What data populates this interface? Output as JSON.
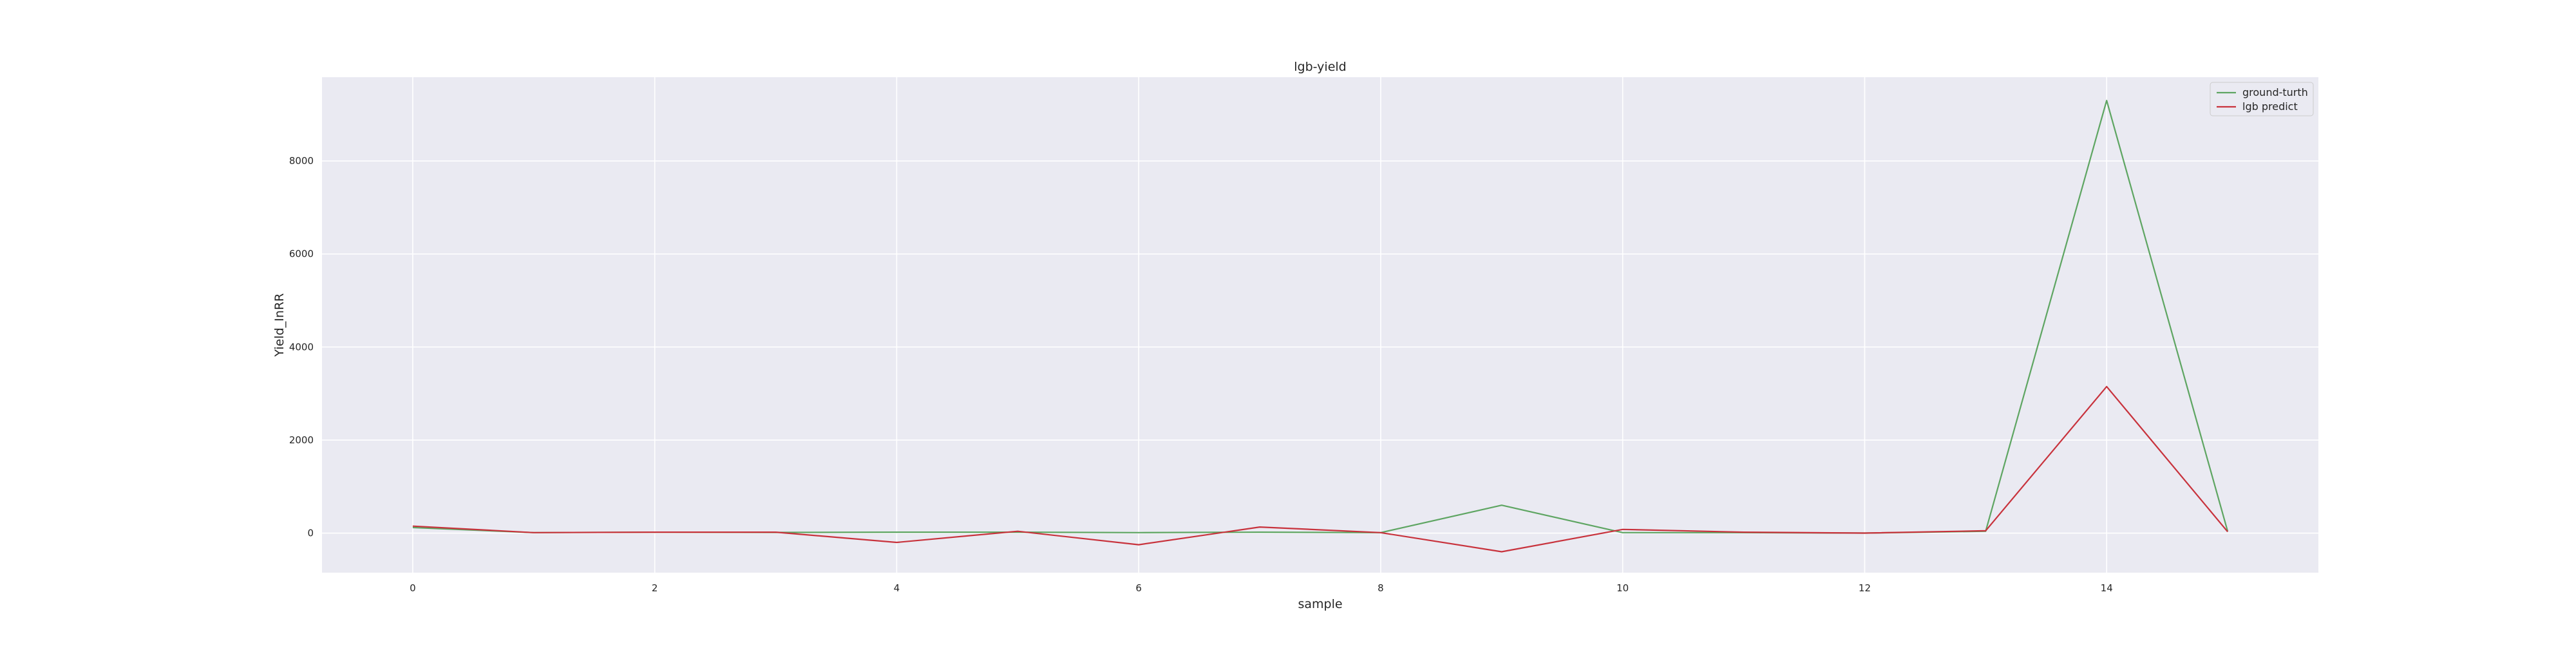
{
  "chart_data": {
    "type": "line",
    "title": "lgb-yield",
    "xlabel": "sample",
    "ylabel": "Yield_InRR",
    "x": [
      0,
      1,
      2,
      3,
      4,
      5,
      6,
      7,
      8,
      9,
      10,
      11,
      12,
      13,
      14,
      15
    ],
    "xlim": [
      -0.75,
      15.75
    ],
    "ylim": [
      -850,
      9800
    ],
    "xticks": [
      0,
      2,
      4,
      6,
      8,
      10,
      12,
      14
    ],
    "yticks": [
      0,
      2000,
      4000,
      6000,
      8000
    ],
    "grid": true,
    "legend_position": "top-right",
    "background_color": "#eaeaf2",
    "grid_color": "#ffffff",
    "series": [
      {
        "name": "ground-turth",
        "color": "#5ea562",
        "values": [
          120,
          10,
          20,
          15,
          20,
          20,
          10,
          20,
          10,
          600,
          10,
          10,
          0,
          40,
          9300,
          40
        ]
      },
      {
        "name": "lgb predict",
        "color": "#c8323c",
        "values": [
          150,
          10,
          20,
          20,
          -200,
          40,
          -250,
          130,
          10,
          -400,
          80,
          20,
          0,
          50,
          3150,
          30
        ]
      }
    ]
  }
}
